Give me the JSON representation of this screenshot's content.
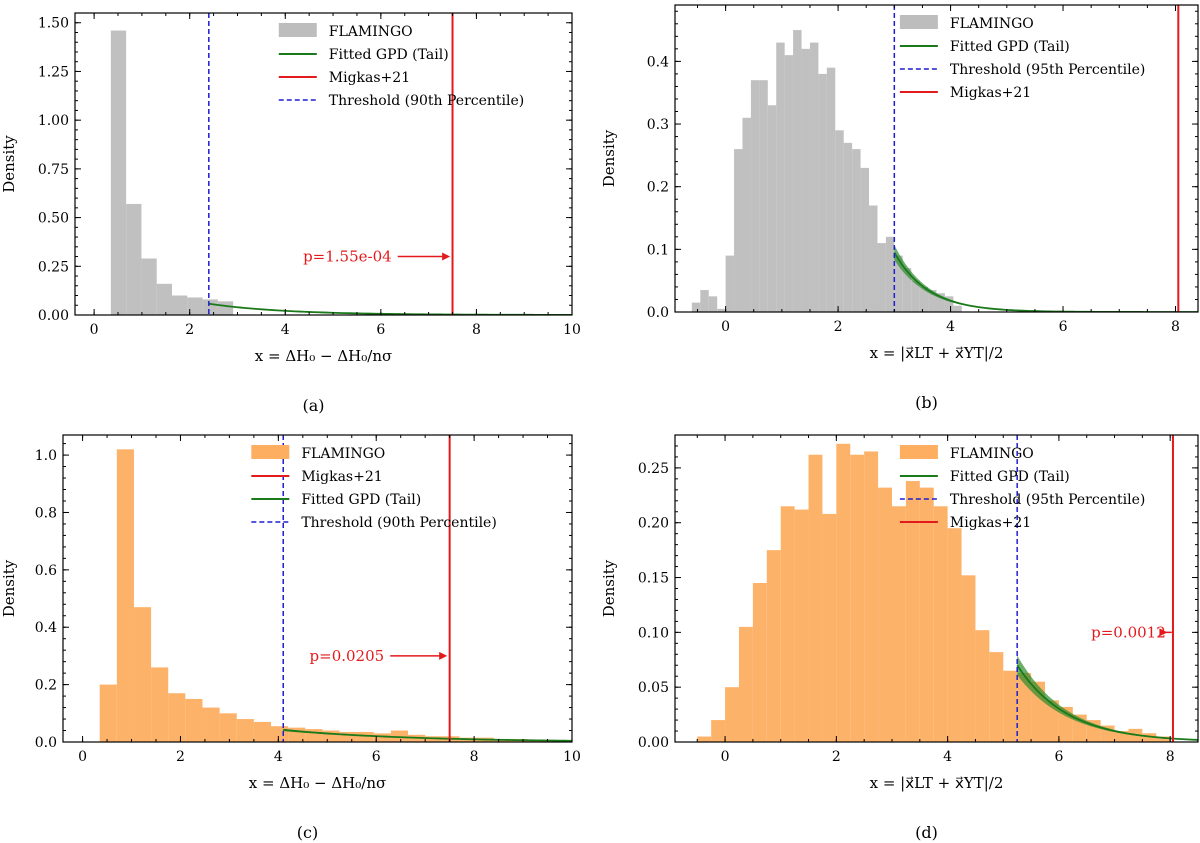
{
  "chart_data": [
    {
      "id": "a",
      "type": "histogram",
      "caption": "(a)",
      "xlabel": "x = ΔH₀ − ΔH₀/nσ",
      "ylabel": "Density",
      "xlim": [
        -0.4,
        10
      ],
      "ylim": [
        0,
        1.55
      ],
      "xticks": [
        0,
        2,
        4,
        6,
        8,
        10
      ],
      "yticks": [
        0.0,
        0.25,
        0.5,
        0.75,
        1.0,
        1.25,
        1.5
      ],
      "xtick_labels": [
        "0",
        "2",
        "4",
        "6",
        "8",
        "10"
      ],
      "ytick_labels": [
        "0.00",
        "0.25",
        "0.50",
        "0.75",
        "1.00",
        "1.25",
        "1.50"
      ],
      "hist_color": "#bdbdbd",
      "hist_edges": [
        0.35,
        0.67,
        0.99,
        1.31,
        1.63,
        1.95,
        2.27,
        2.59,
        2.91
      ],
      "hist_values": [
        1.46,
        0.57,
        0.29,
        0.16,
        0.1,
        0.09,
        0.08,
        0.07
      ],
      "gpd": {
        "threshold": 2.4,
        "value_at_threshold": 0.058,
        "scale": 1.6,
        "x_end": 10,
        "band": 0.003
      },
      "threshold_x": 2.4,
      "migkas_x": 7.5,
      "annotation": {
        "text": "p=1.55e-04",
        "x": 5.3,
        "arrow_to_x": 7.45,
        "y": 0.3
      },
      "legend": [
        {
          "kind": "patch",
          "label": "FLAMINGO"
        },
        {
          "kind": "gpd",
          "label": "Fitted GPD (Tail)"
        },
        {
          "kind": "migkas",
          "label": "Migkas+21"
        },
        {
          "kind": "threshold",
          "label": "Threshold (90th Percentile)"
        }
      ]
    },
    {
      "id": "b",
      "type": "histogram",
      "caption": "(b)",
      "xlabel": "x = |x⃗LT + x⃗YT|/2",
      "ylabel": "Density",
      "xlim": [
        -0.9,
        8.4
      ],
      "ylim": [
        0,
        0.49
      ],
      "xticks": [
        0,
        2,
        4,
        6,
        8
      ],
      "yticks": [
        0.0,
        0.1,
        0.2,
        0.3,
        0.4
      ],
      "xtick_labels": [
        "0",
        "2",
        "4",
        "6",
        "8"
      ],
      "ytick_labels": [
        "0.0",
        "0.1",
        "0.2",
        "0.3",
        "0.4"
      ],
      "hist_color": "#bdbdbd",
      "hist_edges": [
        -0.6,
        -0.45,
        -0.3,
        -0.15,
        0.0,
        0.15,
        0.3,
        0.45,
        0.6,
        0.75,
        0.9,
        1.05,
        1.2,
        1.35,
        1.5,
        1.65,
        1.8,
        1.95,
        2.1,
        2.25,
        2.4,
        2.55,
        2.7,
        2.85,
        3.0,
        3.15,
        3.3,
        3.45,
        3.6,
        3.75,
        3.9,
        4.05,
        4.2
      ],
      "hist_values": [
        0.015,
        0.035,
        0.025,
        0.005,
        0.09,
        0.26,
        0.31,
        0.37,
        0.37,
        0.33,
        0.43,
        0.41,
        0.45,
        0.42,
        0.43,
        0.38,
        0.39,
        0.29,
        0.27,
        0.26,
        0.23,
        0.17,
        0.11,
        0.12,
        0.09,
        0.07,
        0.05,
        0.04,
        0.035,
        0.03,
        0.025,
        0.01
      ],
      "gpd": {
        "threshold": 3.0,
        "value_at_threshold": 0.095,
        "scale": 0.6,
        "x_end": 8.4,
        "band": 0.012
      },
      "threshold_x": 3.0,
      "migkas_x": 8.05,
      "legend": [
        {
          "kind": "patch",
          "label": "FLAMINGO"
        },
        {
          "kind": "gpd",
          "label": "Fitted GPD (Tail)"
        },
        {
          "kind": "threshold",
          "label": "Threshold (95th Percentile)"
        },
        {
          "kind": "migkas",
          "label": "Migkas+21"
        }
      ]
    },
    {
      "id": "c",
      "type": "histogram",
      "caption": "(c)",
      "xlabel": "x = ΔH₀ − ΔH₀/nσ",
      "ylabel": "Density",
      "xlim": [
        -0.4,
        10
      ],
      "ylim": [
        0,
        1.07
      ],
      "xticks": [
        0,
        2,
        4,
        6,
        8,
        10
      ],
      "yticks": [
        0.0,
        0.2,
        0.4,
        0.6,
        0.8,
        1.0
      ],
      "xtick_labels": [
        "0",
        "2",
        "4",
        "6",
        "8",
        "10"
      ],
      "ytick_labels": [
        "0.0",
        "0.2",
        "0.4",
        "0.6",
        "0.8",
        "1.0"
      ],
      "hist_color": "#fdae61",
      "hist_edges": [
        0.35,
        0.7,
        1.05,
        1.4,
        1.75,
        2.1,
        2.45,
        2.8,
        3.15,
        3.5,
        3.85,
        4.2,
        4.55,
        4.9,
        5.25,
        5.6,
        5.95,
        6.3,
        6.65,
        7.0,
        7.35,
        7.7,
        8.05,
        8.4,
        8.75,
        9.1,
        9.45,
        9.8
      ],
      "hist_values": [
        0.2,
        1.02,
        0.47,
        0.26,
        0.17,
        0.15,
        0.12,
        0.1,
        0.08,
        0.07,
        0.055,
        0.05,
        0.045,
        0.04,
        0.035,
        0.035,
        0.03,
        0.04,
        0.025,
        0.02,
        0.02,
        0.015,
        0.015,
        0.01,
        0.01,
        0.008,
        0.006
      ],
      "gpd": {
        "threshold": 4.1,
        "value_at_threshold": 0.042,
        "scale": 2.6,
        "x_end": 10,
        "band": 0.004
      },
      "threshold_x": 4.1,
      "migkas_x": 7.5,
      "annotation": {
        "text": "p=0.0205",
        "x": 5.4,
        "arrow_to_x": 7.45,
        "y": 0.3
      },
      "legend": [
        {
          "kind": "patch",
          "label": "FLAMINGO"
        },
        {
          "kind": "migkas",
          "label": "Migkas+21"
        },
        {
          "kind": "gpd",
          "label": "Fitted GPD (Tail)"
        },
        {
          "kind": "threshold",
          "label": "Threshold (90th Percentile)"
        }
      ]
    },
    {
      "id": "d",
      "type": "histogram",
      "caption": "(d)",
      "xlabel": "x = |x⃗LT + x⃗YT|/2",
      "ylabel": "Density",
      "xlim": [
        -0.9,
        8.5
      ],
      "ylim": [
        0,
        0.28
      ],
      "xticks": [
        0,
        2,
        4,
        6,
        8
      ],
      "yticks": [
        0.0,
        0.05,
        0.1,
        0.15,
        0.2,
        0.25
      ],
      "xtick_labels": [
        "0",
        "2",
        "4",
        "6",
        "8"
      ],
      "ytick_labels": [
        "0.00",
        "0.05",
        "0.10",
        "0.15",
        "0.20",
        "0.25"
      ],
      "hist_color": "#fdae61",
      "hist_edges": [
        -0.5,
        -0.25,
        0.0,
        0.25,
        0.5,
        0.75,
        1.0,
        1.25,
        1.5,
        1.75,
        2.0,
        2.25,
        2.5,
        2.75,
        3.0,
        3.25,
        3.5,
        3.75,
        4.0,
        4.25,
        4.5,
        4.75,
        5.0,
        5.25,
        5.5,
        5.75,
        6.0,
        6.25,
        6.5,
        6.75,
        7.0,
        7.25,
        7.5,
        7.75,
        8.0
      ],
      "hist_values": [
        0.005,
        0.02,
        0.05,
        0.105,
        0.145,
        0.175,
        0.215,
        0.212,
        0.262,
        0.208,
        0.272,
        0.262,
        0.265,
        0.232,
        0.215,
        0.238,
        0.232,
        0.215,
        0.195,
        0.152,
        0.102,
        0.082,
        0.065,
        0.063,
        0.055,
        0.038,
        0.032,
        0.025,
        0.02,
        0.015,
        0.01,
        0.012,
        0.008,
        0.005
      ],
      "gpd": {
        "threshold": 5.25,
        "value_at_threshold": 0.07,
        "scale": 0.9,
        "x_end": 8.5,
        "band": 0.009
      },
      "threshold_x": 5.25,
      "migkas_x": 8.05,
      "annotation": {
        "text": "p=0.0012",
        "x": 7.25,
        "arrow_to_x": 7.95,
        "y": 0.1
      },
      "legend": [
        {
          "kind": "patch",
          "label": "FLAMINGO"
        },
        {
          "kind": "gpd",
          "label": "Fitted GPD (Tail)"
        },
        {
          "kind": "threshold",
          "label": "Threshold (95th Percentile)"
        },
        {
          "kind": "migkas",
          "label": "Migkas+21"
        }
      ]
    }
  ],
  "colors": {
    "gpd": "#1a7a1a",
    "gpd_band": "#2e8b2e",
    "migkas": "#e31a1c",
    "threshold": "#1f1fd1",
    "annotation": "#e31a1c"
  }
}
